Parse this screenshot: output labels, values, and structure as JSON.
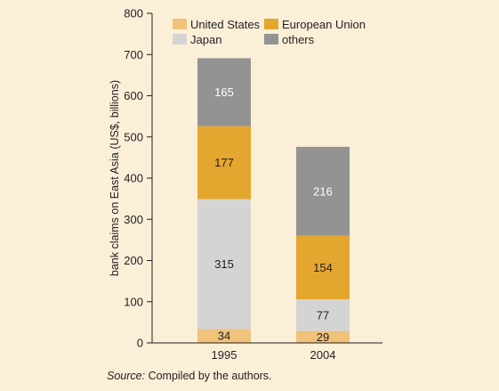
{
  "chart_data": {
    "type": "bar",
    "stacked": true,
    "categories": [
      "1995",
      "2004"
    ],
    "series": [
      {
        "name": "United States",
        "color": "#f0c27a",
        "values": [
          34,
          29
        ]
      },
      {
        "name": "Japan",
        "color": "#d4d4d4",
        "values": [
          315,
          77
        ]
      },
      {
        "name": "European Union",
        "color": "#e5a630",
        "values": [
          177,
          154
        ]
      },
      {
        "name": "others",
        "color": "#939393",
        "values": [
          165,
          216
        ]
      }
    ],
    "legend_order": [
      "United States",
      "European Union",
      "Japan",
      "others"
    ],
    "legend_position": "top",
    "ylabel": "bank claims on East Asia (US$, billions)",
    "xlabel": "",
    "ylim": [
      0,
      800
    ],
    "yticks": [
      0,
      100,
      200,
      300,
      400,
      500,
      600,
      700,
      800
    ],
    "grid": false,
    "background_color": "#fbefd8"
  },
  "source": {
    "prefix": "Source:",
    "text": " Compiled by the authors."
  }
}
